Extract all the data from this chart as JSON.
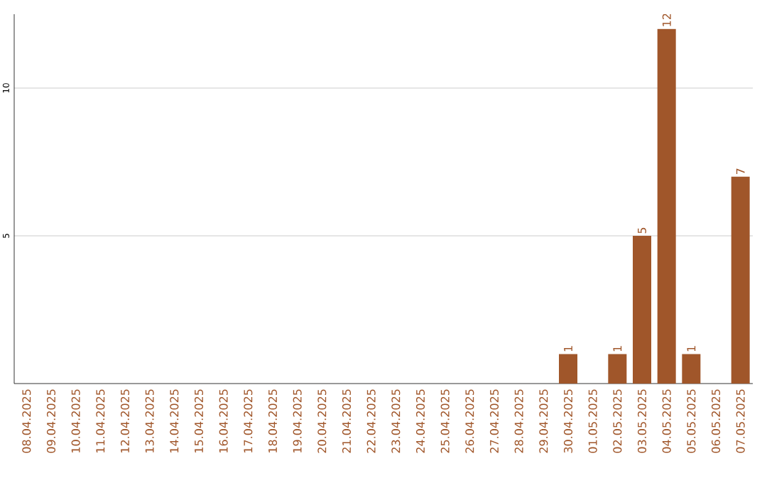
{
  "chart_data": {
    "type": "bar",
    "categories": [
      "08.04.2025",
      "09.04.2025",
      "10.04.2025",
      "11.04.2025",
      "12.04.2025",
      "13.04.2025",
      "14.04.2025",
      "15.04.2025",
      "16.04.2025",
      "17.04.2025",
      "18.04.2025",
      "19.04.2025",
      "20.04.2025",
      "21.04.2025",
      "22.04.2025",
      "23.04.2025",
      "24.04.2025",
      "25.04.2025",
      "26.04.2025",
      "27.04.2025",
      "28.04.2025",
      "29.04.2025",
      "30.04.2025",
      "01.05.2025",
      "02.05.2025",
      "03.05.2025",
      "04.05.2025",
      "05.05.2025",
      "06.05.2025",
      "07.05.2025"
    ],
    "values": [
      0,
      0,
      0,
      0,
      0,
      0,
      0,
      0,
      0,
      0,
      0,
      0,
      0,
      0,
      0,
      0,
      0,
      0,
      0,
      0,
      0,
      0,
      1,
      0,
      1,
      5,
      12,
      1,
      0,
      7
    ],
    "value_labels": [
      null,
      null,
      null,
      null,
      null,
      null,
      null,
      null,
      null,
      null,
      null,
      null,
      null,
      null,
      null,
      null,
      null,
      null,
      null,
      null,
      null,
      null,
      "1",
      null,
      "1",
      "5",
      "12",
      "1",
      null,
      "7"
    ],
    "color": "#a0562a",
    "ylim": [
      0,
      12.5
    ],
    "yticks": [
      5,
      10
    ],
    "grid": "y"
  }
}
